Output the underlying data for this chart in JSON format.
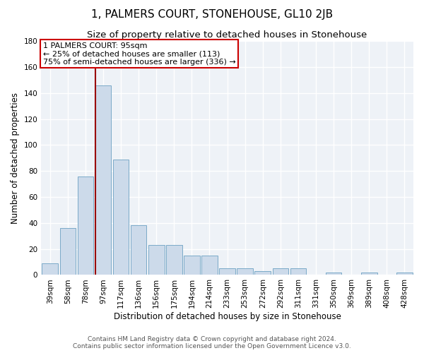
{
  "title": "1, PALMERS COURT, STONEHOUSE, GL10 2JB",
  "subtitle": "Size of property relative to detached houses in Stonehouse",
  "xlabel": "Distribution of detached houses by size in Stonehouse",
  "ylabel": "Number of detached properties",
  "categories": [
    "39sqm",
    "58sqm",
    "78sqm",
    "97sqm",
    "117sqm",
    "136sqm",
    "156sqm",
    "175sqm",
    "194sqm",
    "214sqm",
    "233sqm",
    "253sqm",
    "272sqm",
    "292sqm",
    "311sqm",
    "331sqm",
    "350sqm",
    "369sqm",
    "389sqm",
    "408sqm",
    "428sqm"
  ],
  "values": [
    9,
    36,
    76,
    146,
    89,
    38,
    23,
    23,
    15,
    15,
    5,
    5,
    3,
    5,
    5,
    0,
    2,
    0,
    2,
    0,
    2
  ],
  "bar_color": "#ccdaea",
  "bar_edge_color": "#7aaac8",
  "ylim": [
    0,
    180
  ],
  "yticks": [
    0,
    20,
    40,
    60,
    80,
    100,
    120,
    140,
    160,
    180
  ],
  "property_label": "1 PALMERS COURT: 95sqm",
  "annotation_line1": "← 25% of detached houses are smaller (113)",
  "annotation_line2": "75% of semi-detached houses are larger (336) →",
  "vline_color": "#990000",
  "footer1": "Contains HM Land Registry data © Crown copyright and database right 2024.",
  "footer2": "Contains public sector information licensed under the Open Government Licence v3.0.",
  "background_color": "#eef2f7",
  "grid_color": "#ffffff",
  "title_fontsize": 11,
  "subtitle_fontsize": 9.5,
  "axis_label_fontsize": 8.5,
  "tick_fontsize": 7.5,
  "footer_fontsize": 6.5,
  "annotation_fontsize": 8
}
